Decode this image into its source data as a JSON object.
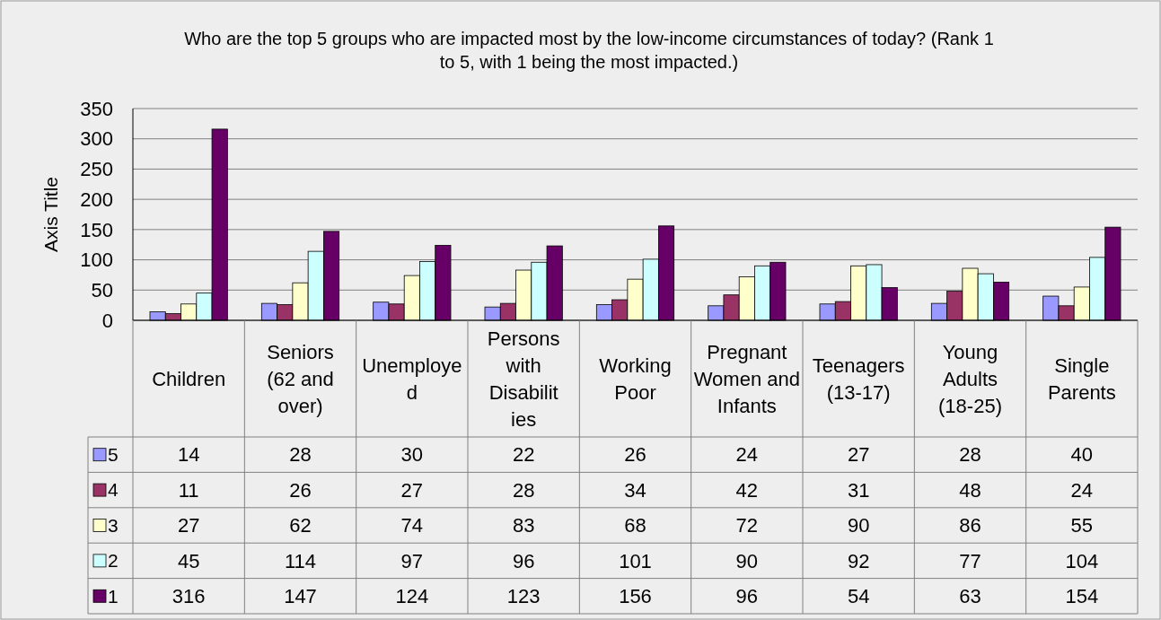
{
  "chart_data": {
    "type": "bar",
    "title": "Who are the top 5 groups who are impacted most by the low-income circumstances of today? (Rank 1 to 5, with 1 being the most impacted.)",
    "ylabel": "Axis Title",
    "categories": [
      "Children",
      "Seniors (62 and over)",
      "Unemployed",
      "Persons with Disabilities",
      "Working Poor",
      "Pregnant Women and Infants",
      "Teenagers (13-17)",
      "Young Adults (18-25)",
      "Single Parents"
    ],
    "series": [
      {
        "name": "5",
        "color": "#9999ff",
        "values": [
          14,
          28,
          30,
          22,
          26,
          24,
          27,
          28,
          40
        ]
      },
      {
        "name": "4",
        "color": "#993366",
        "values": [
          11,
          26,
          27,
          28,
          34,
          42,
          31,
          48,
          24
        ]
      },
      {
        "name": "3",
        "color": "#ffffcc",
        "values": [
          27,
          62,
          74,
          83,
          68,
          72,
          90,
          86,
          55
        ]
      },
      {
        "name": "2",
        "color": "#ccffff",
        "values": [
          45,
          114,
          97,
          96,
          101,
          90,
          92,
          77,
          104
        ]
      },
      {
        "name": "1",
        "color": "#660066",
        "values": [
          316,
          147,
          124,
          123,
          156,
          96,
          54,
          63,
          154
        ]
      }
    ],
    "ylim": [
      0,
      350
    ],
    "yticks": [
      0,
      50,
      100,
      150,
      200,
      250,
      300,
      350
    ],
    "grid": "y",
    "legend": "bottom",
    "data_labels": true
  }
}
